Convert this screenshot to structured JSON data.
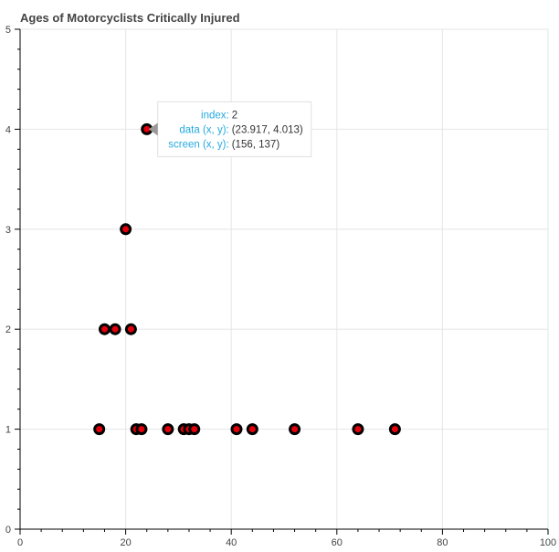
{
  "chart_data": {
    "type": "scatter",
    "title": "Ages of Motorcyclists Critically Injured",
    "xlabel": "",
    "ylabel": "",
    "xlim": [
      0,
      100
    ],
    "ylim": [
      0,
      5
    ],
    "x_ticks": [
      0,
      20,
      40,
      60,
      80,
      100
    ],
    "y_ticks": [
      0,
      1,
      2,
      3,
      4,
      5
    ],
    "grid": true,
    "marker_fill": "#e3000b",
    "marker_stroke": "#000000",
    "points": [
      {
        "x": 15,
        "y": 1
      },
      {
        "x": 16,
        "y": 2
      },
      {
        "x": 18,
        "y": 2
      },
      {
        "x": 20,
        "y": 3
      },
      {
        "x": 21,
        "y": 2
      },
      {
        "x": 22,
        "y": 1
      },
      {
        "x": 23,
        "y": 1
      },
      {
        "x": 24,
        "y": 4
      },
      {
        "x": 28,
        "y": 1
      },
      {
        "x": 31,
        "y": 1
      },
      {
        "x": 32,
        "y": 1
      },
      {
        "x": 33,
        "y": 1
      },
      {
        "x": 41,
        "y": 1
      },
      {
        "x": 44,
        "y": 1
      },
      {
        "x": 52,
        "y": 1
      },
      {
        "x": 64,
        "y": 1
      },
      {
        "x": 71,
        "y": 1
      }
    ],
    "tooltip": {
      "target_index": 7,
      "rows": [
        {
          "key": "index:",
          "value": "2"
        },
        {
          "key": "data (x, y):",
          "value": "(23.917, 4.013)"
        },
        {
          "key": "screen (x, y):",
          "value": "(156, 137)"
        }
      ]
    }
  }
}
